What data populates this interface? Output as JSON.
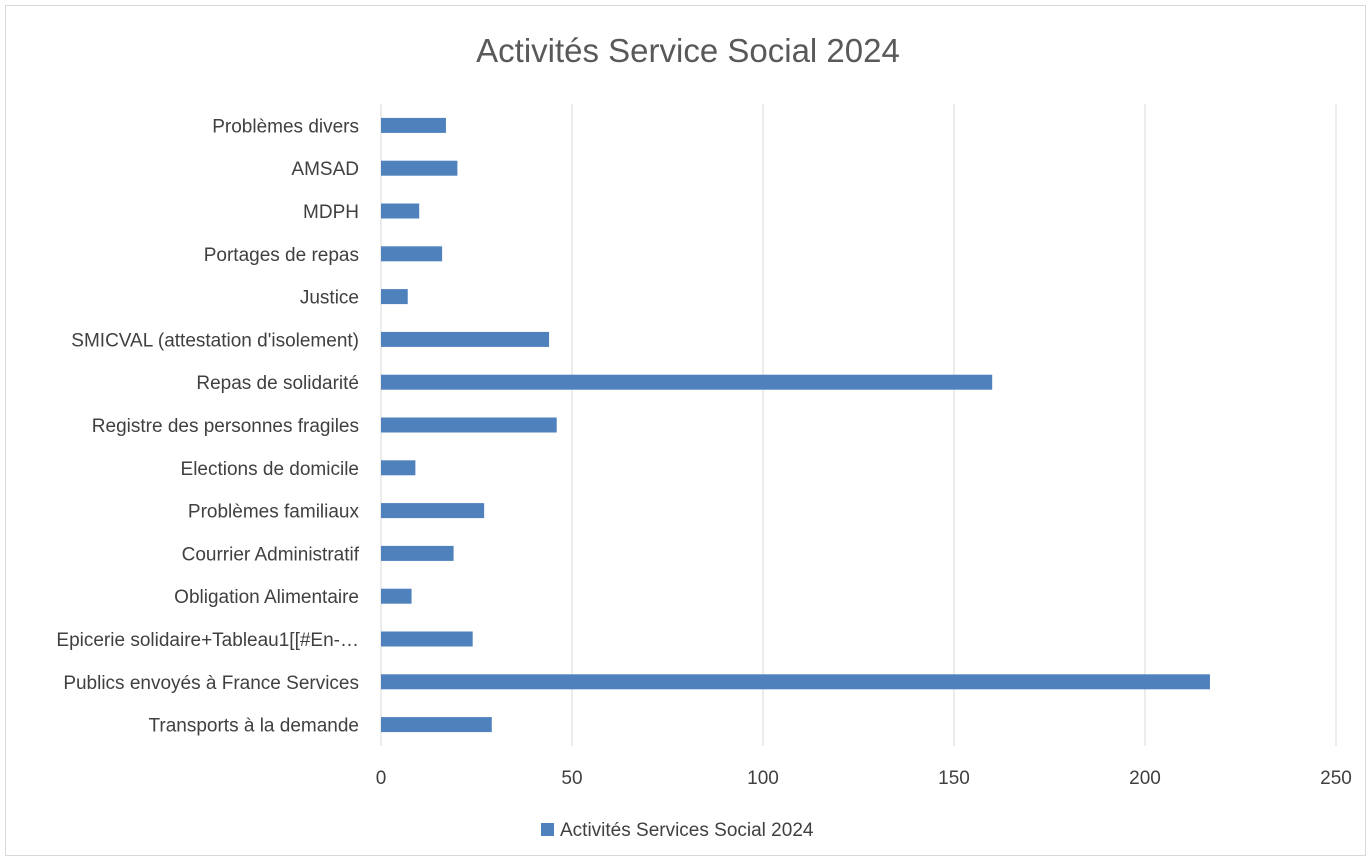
{
  "chart_data": {
    "type": "bar",
    "orientation": "horizontal",
    "title": "Activités Service Social 2024",
    "categories": [
      "Transports à la demande",
      "Publics envoyés à France Services",
      "Epicerie solidaire+Tableau1[[#En-…",
      "Obligation Alimentaire",
      "Courrier Administratif",
      "Problèmes familiaux",
      "Elections de domicile",
      "Registre des personnes fragiles",
      "Repas de solidarité",
      "SMICVAL (attestation d'isolement)",
      "Justice",
      "Portages de repas",
      "MDPH",
      "AMSAD",
      "Problèmes divers"
    ],
    "series": [
      {
        "name": "Activités Services Social 2024",
        "values": [
          29,
          217,
          24,
          8,
          19,
          27,
          9,
          46,
          160,
          44,
          7,
          16,
          10,
          20,
          17
        ],
        "color": "#4f81bd"
      }
    ],
    "xlim": [
      0,
      250
    ],
    "xticks": [
      0,
      50,
      100,
      150,
      200,
      250
    ],
    "grid": true,
    "legend_position": "bottom"
  }
}
